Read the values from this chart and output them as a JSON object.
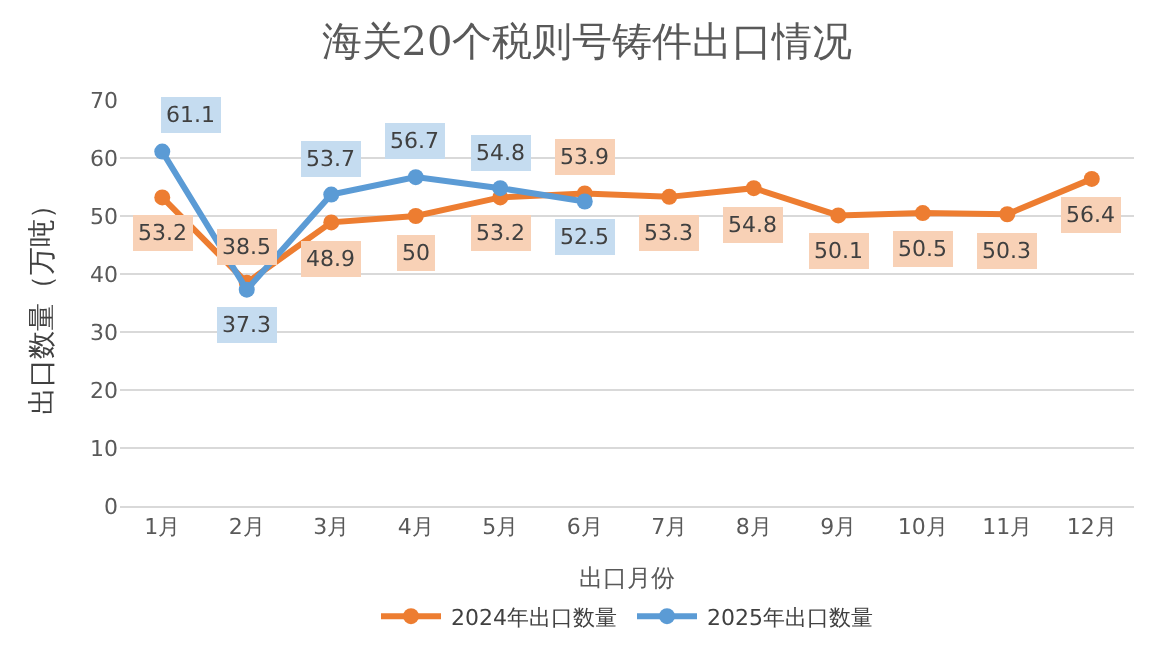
{
  "chart_data": {
    "type": "line",
    "title": "海关20个税则号铸件出口情况",
    "xlabel": "出口月份",
    "ylabel": "出口数量（万吨）",
    "categories": [
      "1月",
      "2月",
      "3月",
      "4月",
      "5月",
      "6月",
      "7月",
      "8月",
      "9月",
      "10月",
      "11月",
      "12月"
    ],
    "series": [
      {
        "name": "2024年出口数量",
        "color": "#ed7d31",
        "values": [
          53.2,
          38.5,
          48.9,
          50,
          53.2,
          53.9,
          53.3,
          54.8,
          50.1,
          50.5,
          50.3,
          56.4
        ]
      },
      {
        "name": "2025年出口数量",
        "color": "#5b9bd5",
        "values": [
          61.1,
          37.3,
          53.7,
          56.7,
          54.8,
          52.5,
          null,
          null,
          null,
          null,
          null,
          null
        ]
      }
    ],
    "ylim": [
      0,
      70
    ],
    "yticks": [
      0,
      10,
      20,
      30,
      40,
      50,
      60,
      70
    ],
    "grid": "y",
    "legend": "bottom",
    "marker": "circle",
    "line_style": "solid",
    "data_labels": true
  }
}
